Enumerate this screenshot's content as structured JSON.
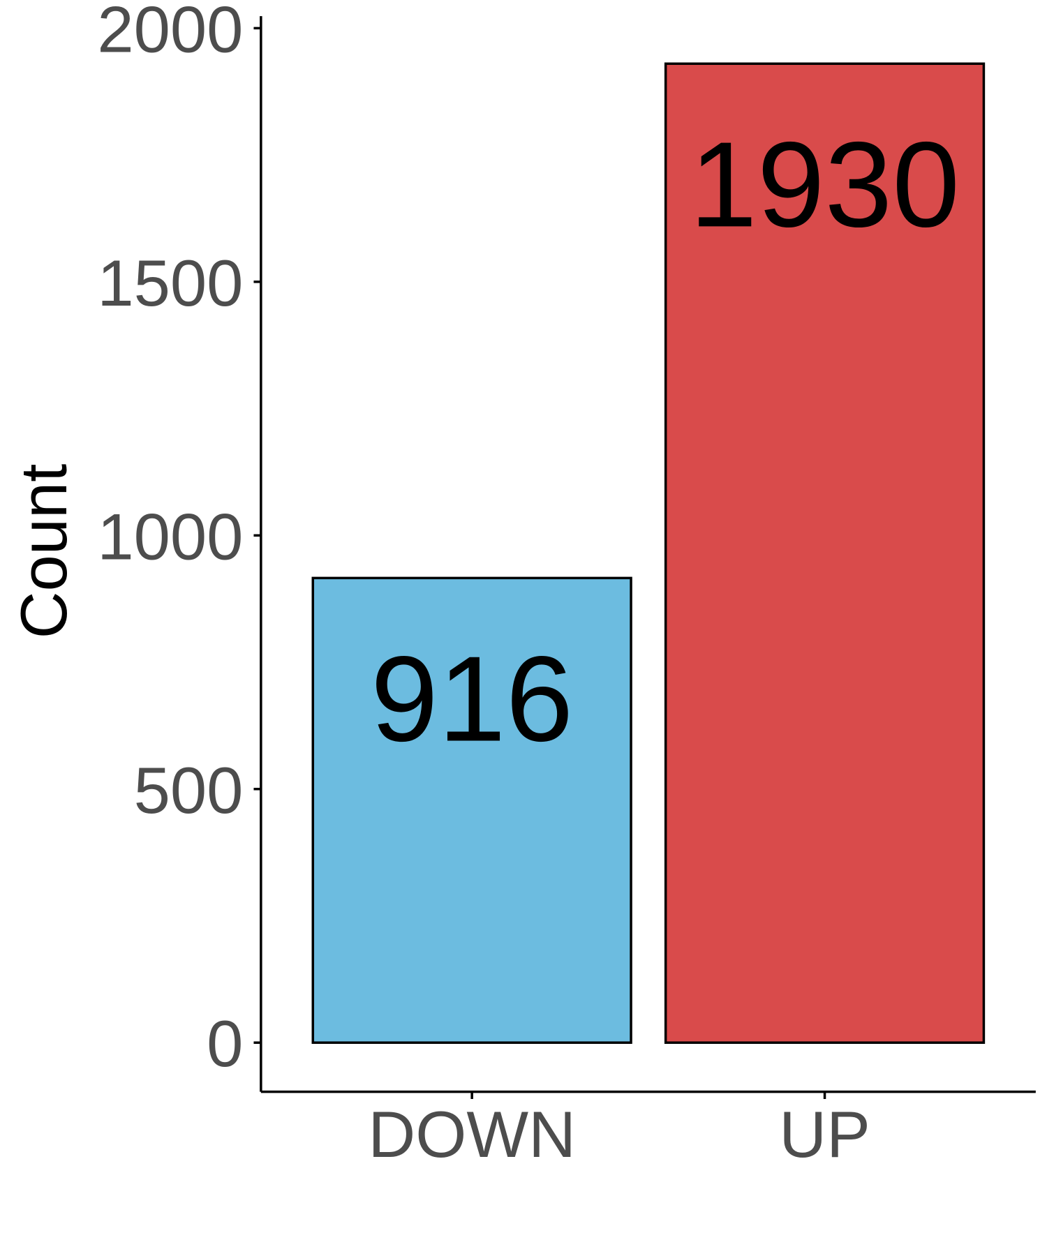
{
  "chart_data": {
    "type": "bar",
    "categories": [
      "DOWN",
      "UP"
    ],
    "values": [
      916,
      1930
    ],
    "value_labels": [
      "916",
      "1930"
    ],
    "colors": [
      "#6cbce0",
      "#d94b4b"
    ],
    "title": "",
    "xlabel": "",
    "ylabel": "Count",
    "ylim": [
      0,
      2000
    ],
    "yticks": [
      0,
      500,
      1000,
      1500,
      2000
    ],
    "ytick_labels": [
      "0",
      "500",
      "1000",
      "1500",
      "2000"
    ],
    "grid": false,
    "legend": "none"
  }
}
